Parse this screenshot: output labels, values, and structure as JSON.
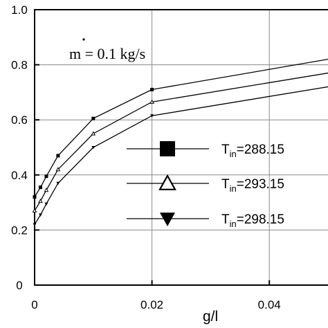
{
  "chart_data": {
    "type": "line",
    "xlabel": "g/l",
    "ylabel": "",
    "xlim": [
      0,
      0.05
    ],
    "ylim": [
      0,
      1.0
    ],
    "x_ticks": [
      0,
      0.02,
      0.04
    ],
    "x_tick_labels": [
      "0",
      "0.02",
      "0.04"
    ],
    "y_ticks": [
      0,
      0.2,
      0.4,
      0.6,
      0.8,
      1.0
    ],
    "y_tick_labels": [
      "0",
      "0.2",
      "0.4",
      "0.6",
      "0.8",
      "1.0"
    ],
    "grid": true,
    "annotation": "m = 0.1 kg/s",
    "series": [
      {
        "name": "T_in=288.15",
        "name_main": "T",
        "name_sub": "in",
        "name_rest": "=288.15",
        "marker": "square",
        "x": [
          0,
          0.001,
          0.002,
          0.004,
          0.01,
          0.02,
          0.05
        ],
        "y": [
          0.32,
          0.355,
          0.395,
          0.47,
          0.605,
          0.71,
          0.82
        ]
      },
      {
        "name": "T_in=293.15",
        "name_main": "T",
        "name_sub": "in",
        "name_rest": "=293.15",
        "marker": "triangle-up",
        "x": [
          0,
          0.001,
          0.002,
          0.004,
          0.01,
          0.02,
          0.05
        ],
        "y": [
          0.27,
          0.305,
          0.345,
          0.42,
          0.55,
          0.665,
          0.77
        ]
      },
      {
        "name": "T_in=298.15",
        "name_main": "T",
        "name_sub": "in",
        "name_rest": "=298.15",
        "marker": "triangle-down",
        "x": [
          0,
          0.001,
          0.002,
          0.004,
          0.01,
          0.02,
          0.05
        ],
        "y": [
          0.22,
          0.255,
          0.295,
          0.37,
          0.5,
          0.615,
          0.72
        ]
      }
    ]
  }
}
